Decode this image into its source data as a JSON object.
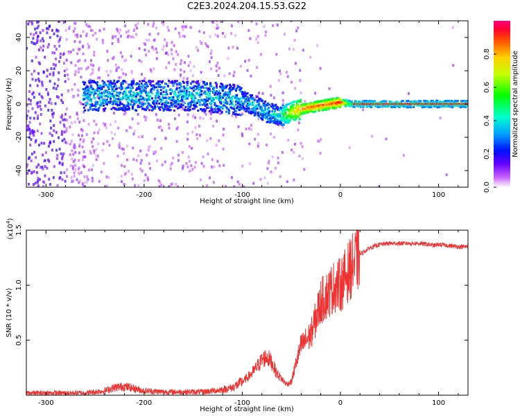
{
  "title": "C2E3.2024.204.15.53.G22",
  "chart_data": [
    {
      "type": "heatmap",
      "xlabel": "Height of straight line (km)",
      "ylabel": "Frequency (Hz)",
      "xlim": [
        -320,
        130
      ],
      "ylim": [
        -50,
        50
      ],
      "x_ticks": [
        "-300",
        "-200",
        "-100",
        "0",
        "100"
      ],
      "x_tick_values": [
        -300,
        -200,
        -100,
        0,
        100
      ],
      "y_ticks": [
        "40",
        "20",
        "0",
        "-20",
        "-40"
      ],
      "y_tick_values": [
        40,
        20,
        0,
        -20,
        -40
      ],
      "colorbar": {
        "label": "Normalized spectral amplitude",
        "ticks": [
          "0.0",
          "0.2",
          "0.4",
          "0.6",
          "0.8"
        ],
        "tick_values": [
          0.0,
          0.2,
          0.4,
          0.6,
          0.8
        ],
        "range": [
          0,
          1
        ]
      },
      "ridge": {
        "x": [
          -260,
          -200,
          -150,
          -110,
          -90,
          -75,
          -60,
          -50,
          -40,
          -30,
          -20,
          -10,
          0,
          10,
          50,
          100,
          130
        ],
        "freq": [
          5,
          5,
          5,
          3,
          0,
          -5,
          -7,
          -5,
          -3,
          -2,
          -1,
          0,
          1,
          0,
          0,
          0,
          0
        ],
        "amplitude": [
          0.45,
          0.45,
          0.45,
          0.45,
          0.45,
          0.45,
          0.5,
          0.7,
          0.85,
          0.9,
          0.9,
          0.9,
          0.95,
          0.5,
          0.5,
          0.5,
          0.5
        ]
      }
    },
    {
      "type": "line",
      "xlabel": "Height of straight line (km)",
      "ylabel": "SNR (10 * v/v)",
      "multiplier_label": "(x10",
      "multiplier_exponent": "4",
      "multiplier_close": ")",
      "xlim": [
        -320,
        130
      ],
      "ylim": [
        0,
        1.5
      ],
      "x_ticks": [
        "-300",
        "-200",
        "-100",
        "0",
        "100"
      ],
      "x_tick_values": [
        -300,
        -200,
        -100,
        0,
        100
      ],
      "y_ticks": [
        "1.5",
        "1.0",
        "0.5"
      ],
      "y_tick_values": [
        1.5,
        1.0,
        0.5
      ],
      "series": [
        {
          "color": "#ee3333",
          "x": [
            -320,
            -300,
            -280,
            -260,
            -240,
            -230,
            -220,
            -210,
            -200,
            -180,
            -160,
            -140,
            -120,
            -110,
            -100,
            -90,
            -80,
            -75,
            -70,
            -65,
            -60,
            -55,
            -50,
            -45,
            -40,
            -35,
            -30,
            -25,
            -20,
            -15,
            -10,
            -5,
            0,
            10,
            20,
            30,
            40,
            50,
            60,
            80,
            90,
            95,
            100,
            110,
            120,
            130
          ],
          "y": [
            0.02,
            0.02,
            0.02,
            0.02,
            0.04,
            0.07,
            0.08,
            0.06,
            0.04,
            0.03,
            0.03,
            0.03,
            0.05,
            0.07,
            0.12,
            0.2,
            0.32,
            0.35,
            0.3,
            0.2,
            0.15,
            0.1,
            0.12,
            0.3,
            0.45,
            0.5,
            0.55,
            0.7,
            0.85,
            0.9,
            0.95,
            1.0,
            1.0,
            1.15,
            1.28,
            1.34,
            1.37,
            1.38,
            1.38,
            1.38,
            1.37,
            1.36,
            1.37,
            1.36,
            1.35,
            1.35
          ]
        }
      ]
    }
  ]
}
